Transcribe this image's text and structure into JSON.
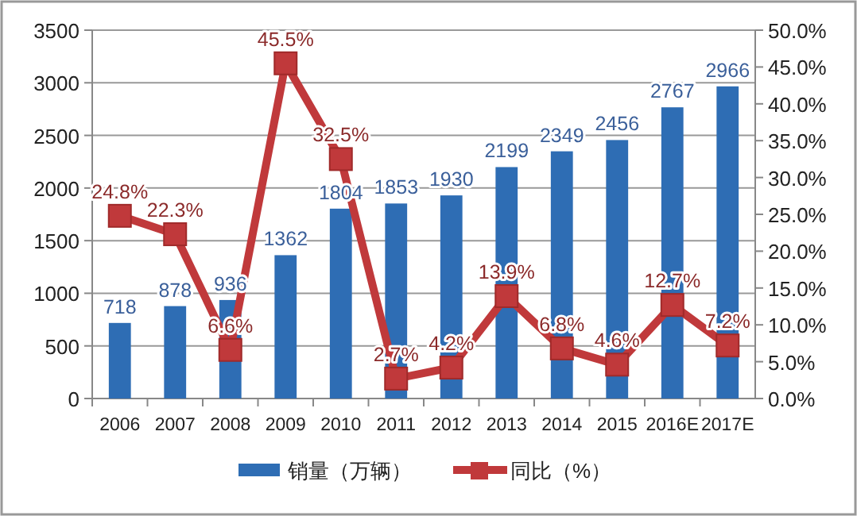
{
  "chart_data": {
    "type": "bar",
    "categories": [
      "2006",
      "2007",
      "2008",
      "2009",
      "2010",
      "2011",
      "2012",
      "2013",
      "2014",
      "2015",
      "2016E",
      "2017E"
    ],
    "series": [
      {
        "name": "销量（万辆）",
        "color": "#2e6db4",
        "values": [
          718,
          878,
          936,
          1362,
          1804,
          1853,
          1930,
          2199,
          2349,
          2456,
          2767,
          2966
        ],
        "value_labels": [
          "718",
          "878",
          "936",
          "1362",
          "1804",
          "1853",
          "1930",
          "2199",
          "2349",
          "2456",
          "2767",
          "2966"
        ]
      },
      {
        "name": "同比（%）",
        "type": "line",
        "axis": "y2",
        "color": "#c0393b",
        "marker": "square",
        "values": [
          24.8,
          22.3,
          6.6,
          45.5,
          32.5,
          2.7,
          4.2,
          13.9,
          6.8,
          4.6,
          12.7,
          7.2
        ],
        "value_labels": [
          "24.8%",
          "22.3%",
          "6.6%",
          "45.5%",
          "32.5%",
          "2.7%",
          "4.2%",
          "13.9%",
          "6.8%",
          "4.6%",
          "12.7%",
          "7.2%"
        ]
      }
    ],
    "ylim": [
      0,
      3500
    ],
    "yticks": [
      0,
      500,
      1000,
      1500,
      2000,
      2500,
      3000,
      3500
    ],
    "y2lim": [
      0,
      50
    ],
    "y2ticks": [
      {
        "value": 0,
        "label": "0.0%"
      },
      {
        "value": 5,
        "label": "5.0%"
      },
      {
        "value": 10,
        "label": "10.0%"
      },
      {
        "value": 15,
        "label": "15.0%"
      },
      {
        "value": 20,
        "label": "20.0%"
      },
      {
        "value": 25,
        "label": "25.0%"
      },
      {
        "value": 30,
        "label": "30.0%"
      },
      {
        "value": 35,
        "label": "35.0%"
      },
      {
        "value": 40,
        "label": "40.0%"
      },
      {
        "value": 45,
        "label": "45.0%"
      },
      {
        "value": 50,
        "label": "50.0%"
      }
    ],
    "grid": "y",
    "legend": "bottom"
  }
}
